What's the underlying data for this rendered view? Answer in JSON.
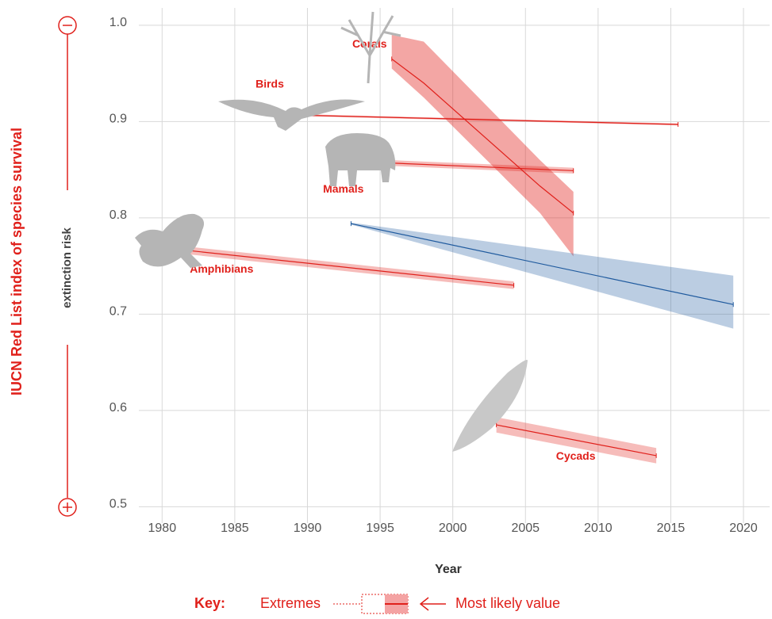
{
  "chart_data": {
    "type": "line",
    "y_title": "IUCN Red List index of species survival",
    "risk_label": "extinction risk",
    "x_title": "Year",
    "key": {
      "title": "Key:",
      "extremes": "Extremes",
      "most_likely": "Most likely value"
    },
    "xlim": [
      1978.4,
      2021.8
    ],
    "ylim": [
      0.483,
      1.018
    ],
    "xticks": [
      1980,
      1985,
      1990,
      1995,
      2000,
      2005,
      2010,
      2015,
      2020
    ],
    "yticks": [
      0.5,
      0.6,
      0.7,
      0.8,
      0.9,
      {
        "value": 1,
        "label": "1.0"
      }
    ],
    "grid": true,
    "series": [
      {
        "name": "Corals",
        "color": "#e0201b",
        "x": [
          1995.8,
          1998,
          2006,
          2008.3
        ],
        "values": [
          0.965,
          0.94,
          0.833,
          0.805
        ],
        "upper": [
          0.99,
          0.983,
          0.86,
          0.827
        ],
        "lower": [
          0.955,
          0.925,
          0.805,
          0.76
        ]
      },
      {
        "name": "Birds",
        "color": "#e0201b",
        "x": [
          1988.5,
          2015.5
        ],
        "values": [
          0.907,
          0.897
        ],
        "upper": [
          0.908,
          0.898
        ],
        "lower": [
          0.906,
          0.896
        ]
      },
      {
        "name": "Mamals",
        "color": "#e0201b",
        "x": [
          1994,
          2008.3
        ],
        "values": [
          0.858,
          0.849
        ],
        "upper": [
          0.861,
          0.852
        ],
        "lower": [
          0.855,
          0.846
        ]
      },
      {
        "name": "Amphibians",
        "color": "#e0201b",
        "x": [
          1980,
          2004.2
        ],
        "values": [
          0.769,
          0.73
        ],
        "upper": [
          0.773,
          0.734
        ],
        "lower": [
          0.765,
          0.726
        ]
      },
      {
        "color": "#1f5a9e",
        "x": [
          1993,
          2019.3
        ],
        "values": [
          0.794,
          0.71
        ],
        "upper": [
          0.795,
          0.74
        ],
        "lower": [
          0.793,
          0.685
        ]
      },
      {
        "name": "Cycads",
        "color": "#e0201b",
        "x": [
          2003,
          2014
        ],
        "values": [
          0.585,
          0.553
        ],
        "upper": [
          0.593,
          0.561
        ],
        "lower": [
          0.577,
          0.545
        ]
      }
    ]
  }
}
